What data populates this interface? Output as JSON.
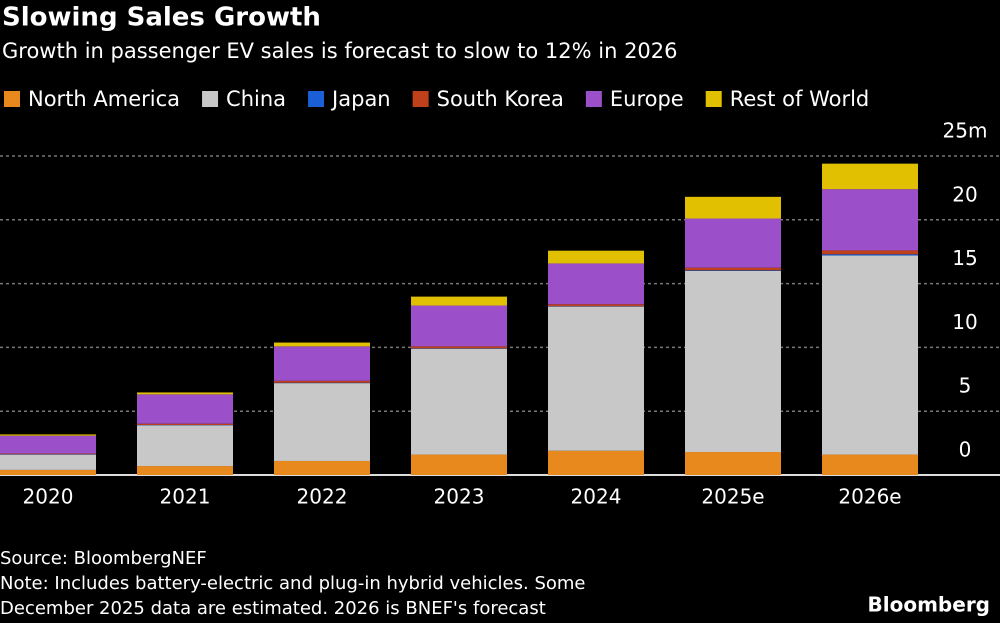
{
  "chart_data": {
    "type": "stacked_bar",
    "title": "Slowing Sales Growth",
    "subtitle": "Growth in passenger EV sales is forecast to slow to 12% in 2026",
    "categories": [
      "2020",
      "2021",
      "2022",
      "2023",
      "2024",
      "2025e",
      "2026e"
    ],
    "series": [
      {
        "name": "North America",
        "color": "#e8891d",
        "values": [
          0.4,
          0.7,
          1.1,
          1.6,
          1.9,
          1.8,
          1.6
        ]
      },
      {
        "name": "China",
        "color": "#c8c8c8",
        "values": [
          1.2,
          3.2,
          6.1,
          8.3,
          11.3,
          14.2,
          15.6
        ]
      },
      {
        "name": "Japan",
        "color": "#1a5fd6",
        "values": [
          0.03,
          0.02,
          0.03,
          0.03,
          0.03,
          0.05,
          0.1
        ]
      },
      {
        "name": "South Korea",
        "color": "#c0401c",
        "values": [
          0.05,
          0.1,
          0.15,
          0.15,
          0.15,
          0.2,
          0.3
        ]
      },
      {
        "name": "Europe",
        "color": "#9b4fc9",
        "values": [
          1.4,
          2.3,
          2.7,
          3.2,
          3.2,
          3.85,
          4.8
        ]
      },
      {
        "name": "Rest of World",
        "color": "#e0c000",
        "values": [
          0.1,
          0.15,
          0.3,
          0.7,
          1.0,
          1.7,
          2.0
        ]
      }
    ],
    "ylim": [
      0,
      25
    ],
    "yticks": [
      0,
      5,
      10,
      15,
      20,
      {
        "value": 25,
        "label": "25m"
      }
    ],
    "grid": true,
    "legend": "top-left",
    "notes": [
      "Source: BloombergNEF",
      "Note: Includes battery-electric and plug-in hybrid vehicles. Some",
      "December 2025 data are estimated. 2026 is BNEF's forecast"
    ],
    "brand": "Bloomberg"
  }
}
